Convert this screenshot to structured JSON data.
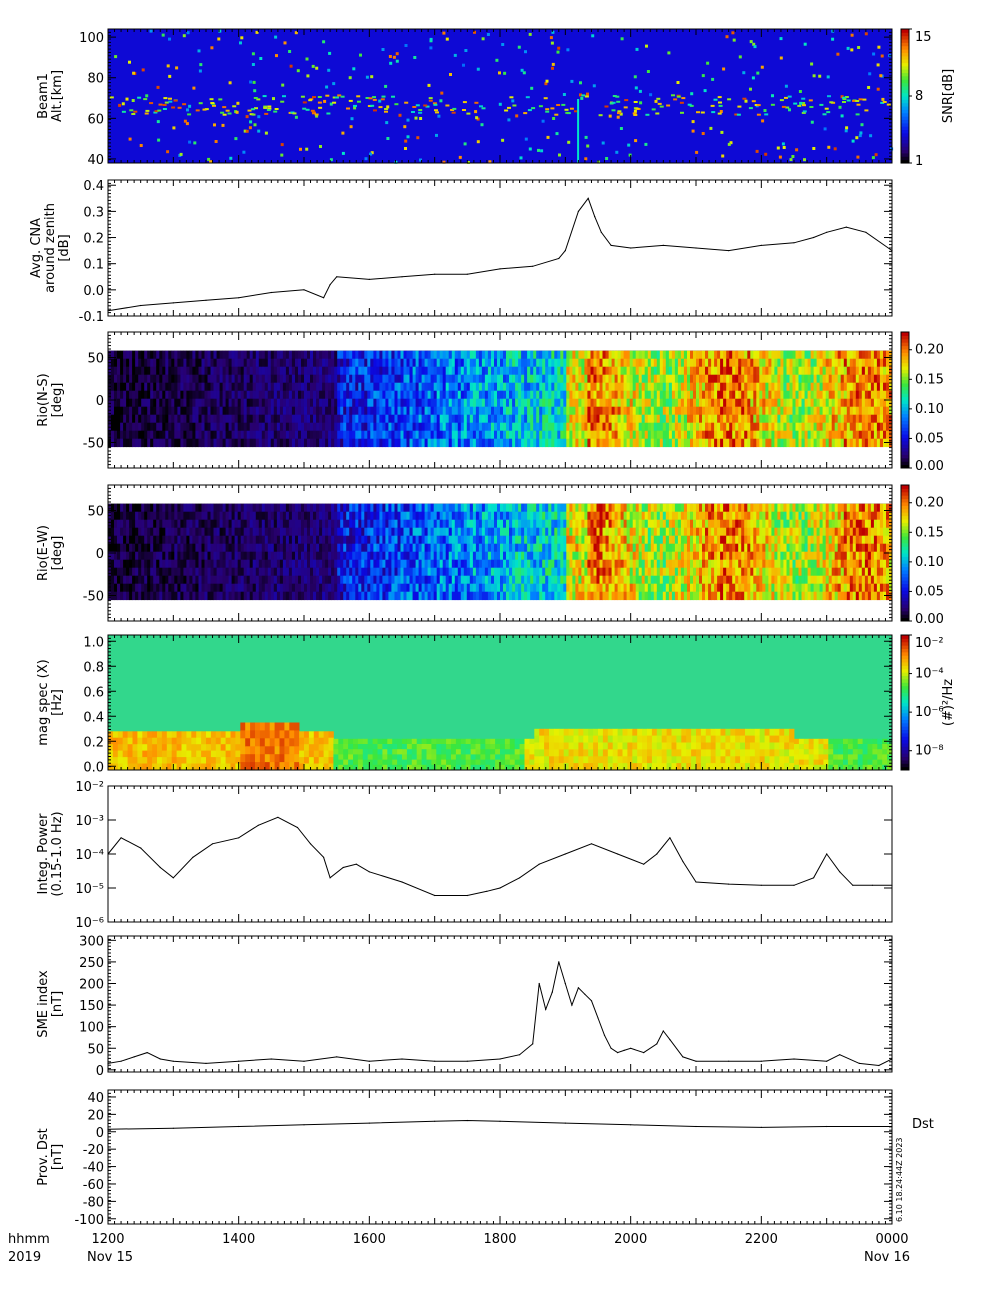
{
  "figure": {
    "time_label": "hhmm",
    "year_label": "2019",
    "x_ticks": [
      "1200",
      "1400",
      "1600",
      "1800",
      "2000",
      "2200",
      "0000"
    ],
    "x_dates": [
      "Nov 15",
      "Nov 16"
    ],
    "stamp": "6.10 18.24:44Z 2023"
  },
  "chart_data": [
    {
      "type": "heatmap",
      "ylabel": [
        "Beam1",
        "Alt.[km]"
      ],
      "ylim": [
        38,
        104
      ],
      "yticks": [
        "40",
        "60",
        "80",
        "100"
      ],
      "colorbar": {
        "label": "SNR[dB]",
        "range": [
          1,
          15
        ],
        "ticks": [
          "1",
          "8",
          "15"
        ]
      },
      "features": "Background ~3-5 dB; persistent enhanced layer near 63-72 km; vertical streak near 1910"
    },
    {
      "type": "line",
      "ylabel": [
        "Avg. CNA",
        "around zenith",
        "[dB]"
      ],
      "ylim": [
        -0.1,
        0.42
      ],
      "yticks": [
        "0.4",
        "0.3",
        "0.2",
        "0.1",
        "0.0",
        "-0.1"
      ],
      "x_hours": [
        12.0,
        12.5,
        13.0,
        13.5,
        14.0,
        14.5,
        15.0,
        15.3,
        15.4,
        15.5,
        16.0,
        16.5,
        17.0,
        17.5,
        18.0,
        18.5,
        18.9,
        19.0,
        19.2,
        19.35,
        19.45,
        19.55,
        19.7,
        20.0,
        20.5,
        21.0,
        21.5,
        22.0,
        22.5,
        22.8,
        23.0,
        23.3,
        23.6,
        24.0
      ],
      "values": [
        -0.08,
        -0.06,
        -0.05,
        -0.04,
        -0.03,
        -0.01,
        0.0,
        -0.03,
        0.02,
        0.05,
        0.04,
        0.05,
        0.06,
        0.06,
        0.08,
        0.09,
        0.12,
        0.15,
        0.3,
        0.35,
        0.28,
        0.22,
        0.17,
        0.16,
        0.17,
        0.16,
        0.15,
        0.17,
        0.18,
        0.2,
        0.22,
        0.24,
        0.22,
        0.15
      ]
    },
    {
      "type": "heatmap",
      "ylabel": [
        "Rio(N-S)",
        "[deg]"
      ],
      "ylim": [
        -80,
        80
      ],
      "yticks": [
        "50",
        "0",
        "-50"
      ],
      "colorbar": {
        "range": [
          0.0,
          0.23
        ],
        "ticks": [
          "0.00",
          "0.05",
          "0.10",
          "0.15",
          "0.20"
        ]
      },
      "features": "Near zero before 1530; increasing 0.05-0.1 to 1900; 0.15-0.23 after 1900"
    },
    {
      "type": "heatmap",
      "ylabel": [
        "Rio(E-W)",
        "[deg]"
      ],
      "ylim": [
        -80,
        80
      ],
      "yticks": [
        "50",
        "0",
        "-50"
      ],
      "colorbar": {
        "range": [
          0.0,
          0.23
        ],
        "ticks": [
          "0.00",
          "0.05",
          "0.10",
          "0.15",
          "0.20"
        ]
      },
      "features": "Near zero before 1530; increasing 0.05-0.1 to 1900; 0.15-0.23 after 1900"
    },
    {
      "type": "heatmap",
      "ylabel": [
        "mag spec (X)",
        "[Hz]"
      ],
      "ylim": [
        -0.03,
        1.05
      ],
      "yticks": [
        "1.0",
        "0.8",
        "0.6",
        "0.4",
        "0.2",
        "0.0"
      ],
      "colorbar": {
        "label": "(#)²/Hz",
        "scale": "log",
        "range": [
          1e-09,
          0.01
        ],
        "ticks": [
          "10⁻⁸",
          "10⁻⁶",
          "10⁻⁴",
          "10⁻²"
        ]
      },
      "features": "Enhanced power (yellow) below 0.3 Hz 1200-1530 and 1830-2300; background ~10^-6"
    },
    {
      "type": "line",
      "ylabel": [
        "Integ. Power",
        "(0.15-1.0 Hz)"
      ],
      "scale": "log",
      "ylim": [
        1e-06,
        0.01
      ],
      "yticks": [
        "10⁻²",
        "10⁻³",
        "10⁻⁴",
        "10⁻⁵",
        "10⁻⁶"
      ],
      "x_hours": [
        12.0,
        12.2,
        12.5,
        12.8,
        13.0,
        13.3,
        13.6,
        14.0,
        14.3,
        14.6,
        14.9,
        15.1,
        15.3,
        15.4,
        15.6,
        15.8,
        16.0,
        16.5,
        17.0,
        17.5,
        17.8,
        18.0,
        18.3,
        18.6,
        19.0,
        19.4,
        19.8,
        20.2,
        20.4,
        20.6,
        20.8,
        21.0,
        21.5,
        22.0,
        22.5,
        22.8,
        23.0,
        23.2,
        23.4,
        23.7,
        24.0
      ],
      "values": [
        0.0001,
        0.0003,
        0.00015,
        4e-05,
        2e-05,
        8e-05,
        0.0002,
        0.0003,
        0.0007,
        0.0012,
        0.0006,
        0.0002,
        8e-05,
        2e-05,
        4e-05,
        5e-05,
        3e-05,
        1.5e-05,
        6e-06,
        6e-06,
        8e-06,
        1e-05,
        2e-05,
        5e-05,
        0.0001,
        0.0002,
        0.0001,
        5e-05,
        0.0001,
        0.0003,
        6e-05,
        1.5e-05,
        1.3e-05,
        1.2e-05,
        1.2e-05,
        2e-05,
        0.0001,
        3e-05,
        1.2e-05,
        1.2e-05,
        1.2e-05
      ]
    },
    {
      "type": "line",
      "ylabel": [
        "SME index",
        "[nT]"
      ],
      "ylim": [
        -5,
        310
      ],
      "yticks": [
        "300",
        "250",
        "200",
        "150",
        "100",
        "50",
        "0"
      ],
      "x_hours": [
        12.0,
        12.2,
        12.4,
        12.6,
        12.8,
        13.0,
        13.5,
        14.0,
        14.5,
        15.0,
        15.5,
        16.0,
        16.5,
        17.0,
        17.5,
        18.0,
        18.3,
        18.5,
        18.6,
        18.7,
        18.8,
        18.9,
        19.0,
        19.1,
        19.2,
        19.3,
        19.4,
        19.5,
        19.6,
        19.7,
        19.8,
        19.9,
        20.0,
        20.2,
        20.4,
        20.5,
        20.6,
        20.8,
        21.0,
        21.5,
        22.0,
        22.5,
        23.0,
        23.2,
        23.5,
        23.8,
        24.0
      ],
      "values": [
        15,
        20,
        30,
        40,
        25,
        20,
        15,
        20,
        25,
        20,
        30,
        20,
        25,
        20,
        20,
        25,
        35,
        60,
        200,
        140,
        180,
        250,
        200,
        150,
        190,
        175,
        160,
        120,
        80,
        50,
        40,
        45,
        50,
        40,
        60,
        90,
        70,
        30,
        20,
        20,
        20,
        25,
        20,
        35,
        15,
        10,
        25
      ]
    },
    {
      "type": "line",
      "ylabel": [
        "Prov. Dst",
        "[nT]"
      ],
      "ylim": [
        -106,
        48
      ],
      "yticks": [
        "40",
        "20",
        "0",
        "-20",
        "-40",
        "-60",
        "-80",
        "-100"
      ],
      "legend": "Dst",
      "x_hours": [
        12.0,
        13.0,
        14.0,
        15.0,
        16.0,
        17.0,
        17.5,
        18.0,
        19.0,
        20.0,
        21.0,
        22.0,
        23.0,
        24.0
      ],
      "values": [
        3,
        4,
        6,
        8,
        10,
        12,
        13,
        12,
        10,
        8,
        6,
        5,
        6,
        6
      ]
    }
  ]
}
